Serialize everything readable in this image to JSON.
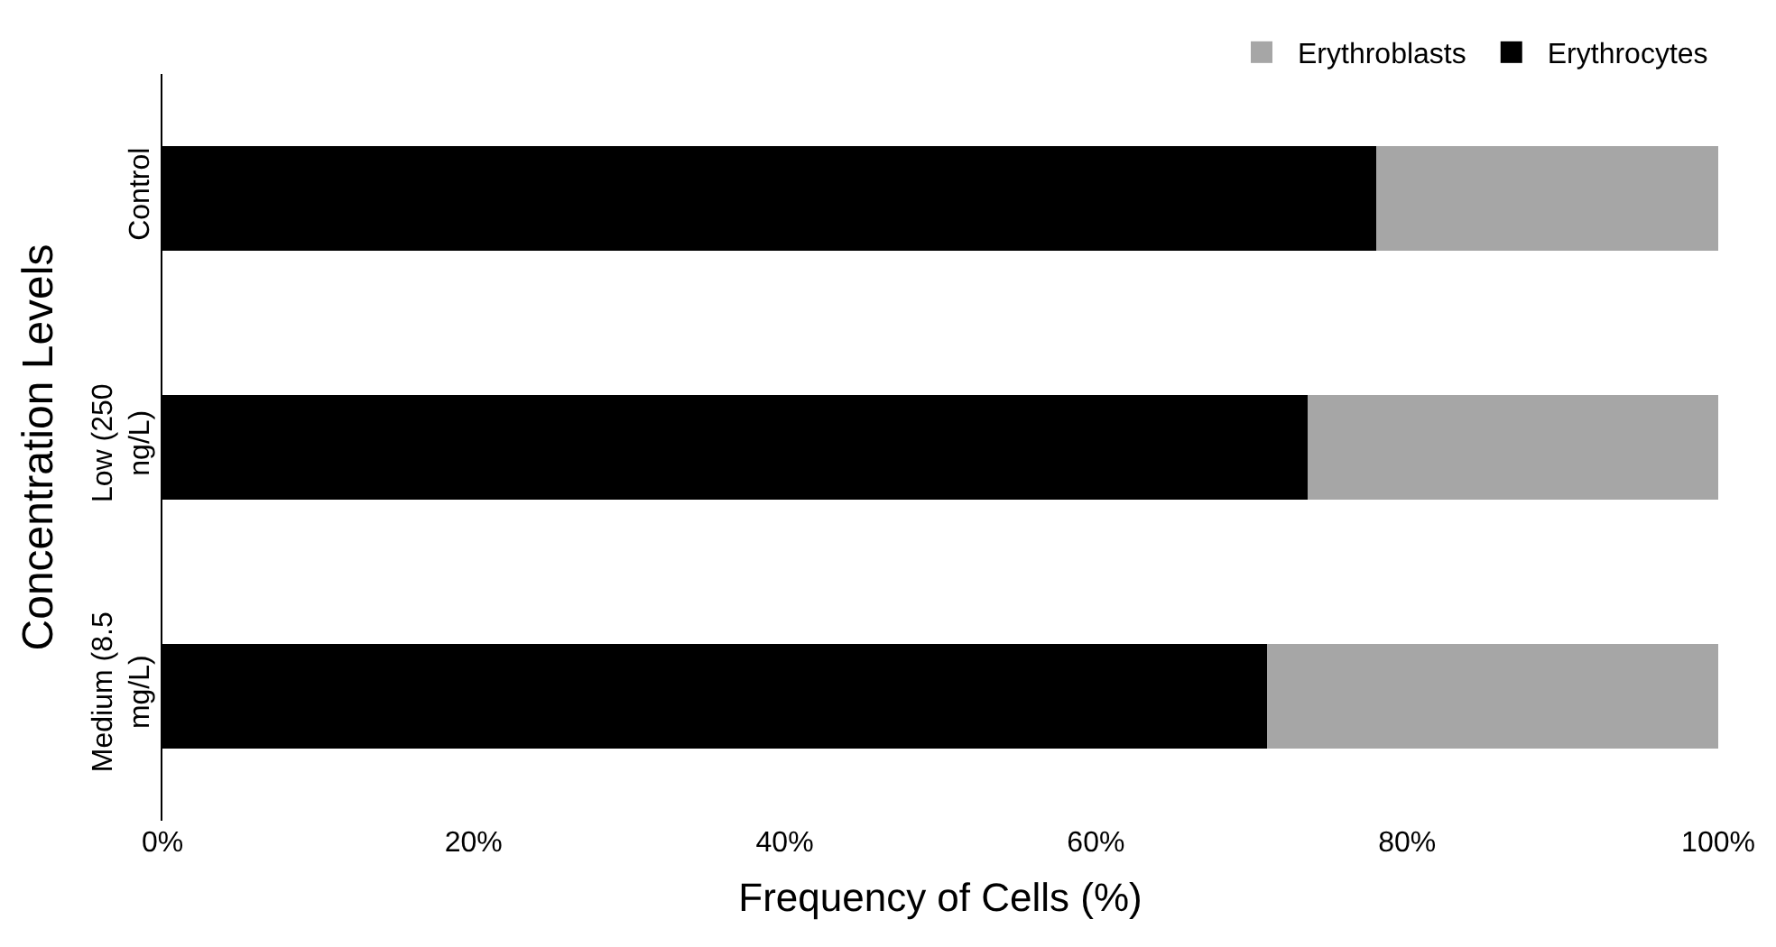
{
  "chart_data": {
    "type": "bar",
    "orientation": "horizontal",
    "stacked": true,
    "xlabel": "Frequency of Cells (%)",
    "ylabel": "Concentration Levels",
    "categories": [
      "Control",
      "Low (250 ng/L)",
      "Medium (8.5 mg/L)"
    ],
    "series": [
      {
        "name": "Erythrocytes",
        "color": "#000000",
        "values": [
          78,
          73.6,
          71
        ]
      },
      {
        "name": "Erythroblasts",
        "color": "#a6a6a6",
        "values": [
          22,
          26.4,
          29
        ]
      }
    ],
    "xlim": [
      0,
      100
    ],
    "xticks": [
      {
        "value": 0,
        "label": "0%"
      },
      {
        "value": 20,
        "label": "20%"
      },
      {
        "value": 40,
        "label": "40%"
      },
      {
        "value": 60,
        "label": "60%"
      },
      {
        "value": 80,
        "label": "80%"
      },
      {
        "value": 100,
        "label": "100%"
      }
    ],
    "grid": false,
    "legend": "top right"
  }
}
